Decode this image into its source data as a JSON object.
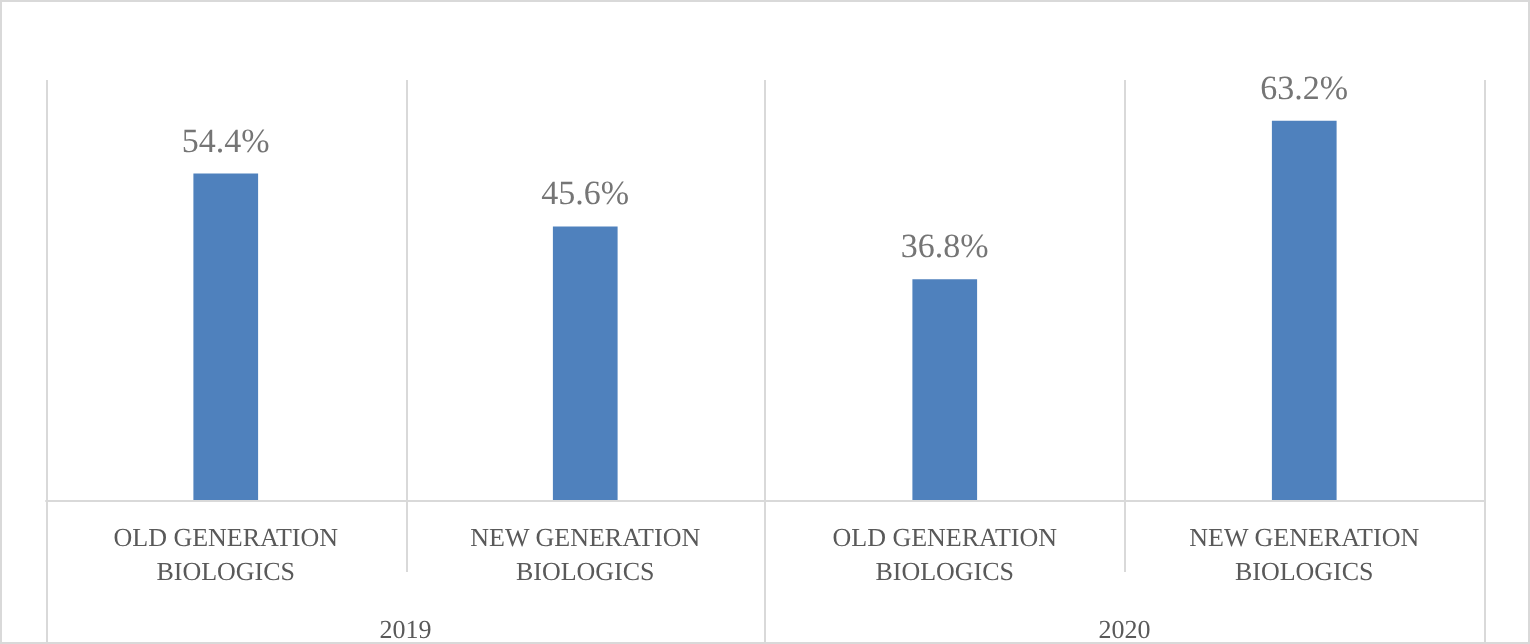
{
  "chart_data": {
    "type": "bar",
    "categories": [
      "OLD GENERATION\nBIOLOGICS",
      "NEW GENERATION\nBIOLOGICS",
      "OLD GENERATION\nBIOLOGICS",
      "NEW GENERATION\nBIOLOGICS"
    ],
    "values": [
      54.4,
      45.6,
      36.8,
      63.2
    ],
    "value_labels": [
      "54.4%",
      "45.6%",
      "36.8%",
      "63.2%"
    ],
    "color": "#4f81bd",
    "ylim": [
      0,
      70
    ],
    "grid": "x",
    "annotations": [
      "2019",
      "2020"
    ]
  }
}
